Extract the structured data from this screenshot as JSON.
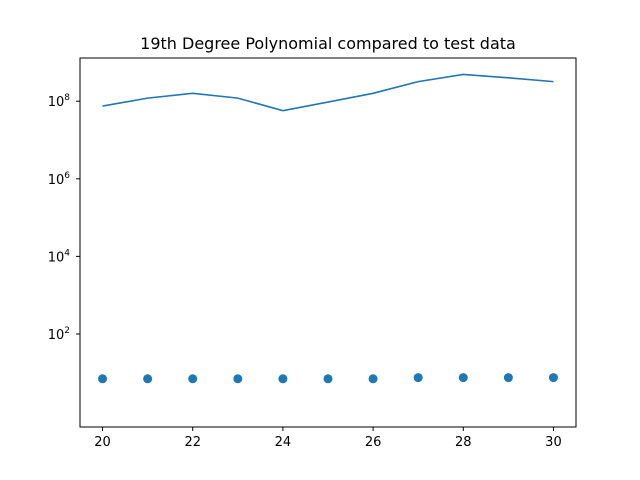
{
  "chart_data": {
    "type": "line",
    "title": "19th Degree Polynomial compared to test data",
    "xlabel": "",
    "ylabel": "",
    "yscale": "log",
    "xlim": [
      19.5,
      30.5
    ],
    "ylim": [
      0.4,
      1300000000.0
    ],
    "x_ticks": [
      20,
      22,
      24,
      26,
      28,
      30
    ],
    "y_ticks": [
      {
        "value": 100,
        "base": "10",
        "exp": "2"
      },
      {
        "value": 10000,
        "base": "10",
        "exp": "4"
      },
      {
        "value": 1000000,
        "base": "10",
        "exp": "6"
      },
      {
        "value": 100000000,
        "base": "10",
        "exp": "8"
      }
    ],
    "grid": false,
    "colors": {
      "series": "#1f77b4"
    },
    "series": [
      {
        "kind": "line",
        "x": [
          20,
          21,
          22,
          23,
          24,
          25,
          26,
          27,
          28,
          29,
          30
        ],
        "y": [
          75000000,
          120000000,
          160000000,
          120000000,
          57000000,
          95000000,
          160000000,
          320000000,
          490000000,
          400000000,
          320000000
        ]
      },
      {
        "kind": "scatter",
        "x": [
          20,
          21,
          22,
          23,
          24,
          25,
          26,
          27,
          28,
          29,
          30
        ],
        "y": [
          7.0,
          7.0,
          7.0,
          7.0,
          7.0,
          7.0,
          7.0,
          7.5,
          7.5,
          7.5,
          7.5
        ]
      }
    ]
  }
}
